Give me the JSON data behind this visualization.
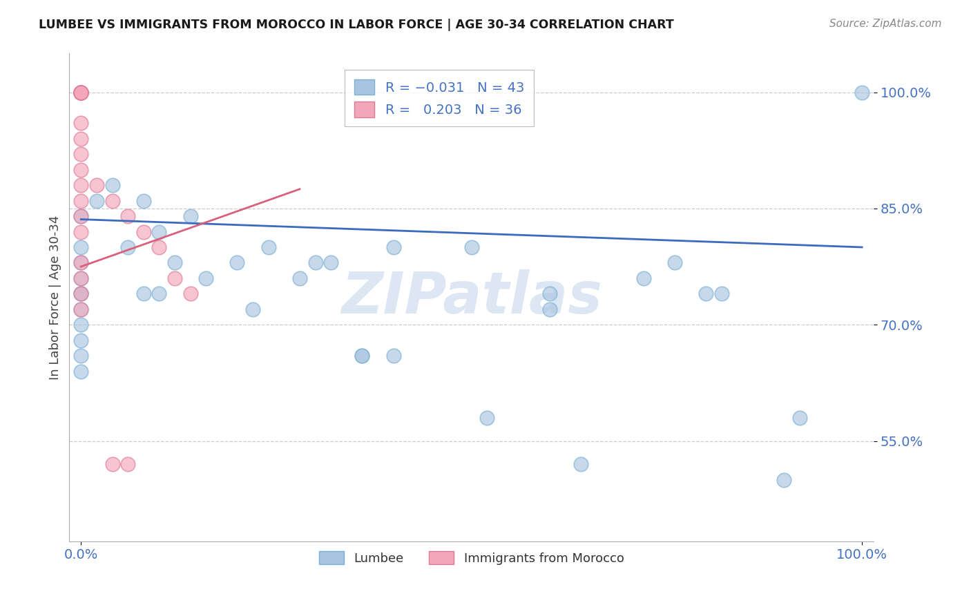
{
  "title": "LUMBEE VS IMMIGRANTS FROM MOROCCO IN LABOR FORCE | AGE 30-34 CORRELATION CHART",
  "source": "Source: ZipAtlas.com",
  "ylabel": "In Labor Force | Age 30-34",
  "xlim": [
    0.0,
    1.0
  ],
  "ylim": [
    0.42,
    1.05
  ],
  "yticks": [
    0.55,
    0.7,
    0.85,
    1.0
  ],
  "ytick_labels": [
    "55.0%",
    "70.0%",
    "85.0%",
    "100.0%"
  ],
  "xticks": [
    0.0,
    1.0
  ],
  "xtick_labels": [
    "0.0%",
    "100.0%"
  ],
  "lumbee_color": "#a8c4e0",
  "lumbee_edge": "#7aafd4",
  "morocco_color": "#f4a7b9",
  "morocco_edge": "#e07898",
  "lumbee_trend_x": [
    0.0,
    1.0
  ],
  "lumbee_trend_y": [
    0.836,
    0.8
  ],
  "morocco_trend_x": [
    0.0,
    0.28
  ],
  "morocco_trend_y": [
    0.775,
    0.875
  ],
  "trend_blue": "#3a6bbf",
  "trend_pink": "#d9607a",
  "watermark": "ZIPatlas",
  "watermark_color": "#c5d8ec",
  "background_color": "#ffffff",
  "grid_color": "#cccccc",
  "tick_color": "#4472C4",
  "title_color": "#1a1a1a",
  "source_color": "#888888",
  "lumbee_x": [
    0.0,
    0.0,
    0.0,
    0.0,
    0.0,
    0.02,
    0.04,
    0.06,
    0.08,
    0.1,
    0.12,
    0.14,
    0.16,
    0.2,
    0.22,
    0.24,
    0.28,
    0.3,
    0.32,
    0.36,
    0.4,
    0.5,
    0.52,
    0.6,
    0.64,
    0.72,
    0.76,
    0.8,
    0.82,
    0.9,
    0.92,
    1.0,
    0.0,
    0.0,
    0.0,
    0.0,
    0.0,
    0.0,
    0.08,
    0.1,
    0.36,
    0.4,
    0.6
  ],
  "lumbee_y": [
    0.84,
    0.8,
    0.78,
    0.76,
    0.74,
    0.86,
    0.88,
    0.8,
    0.86,
    0.82,
    0.78,
    0.84,
    0.76,
    0.78,
    0.72,
    0.8,
    0.76,
    0.78,
    0.78,
    0.66,
    0.8,
    0.8,
    0.58,
    0.74,
    0.52,
    0.76,
    0.78,
    0.74,
    0.74,
    0.5,
    0.58,
    1.0,
    0.7,
    0.68,
    0.66,
    0.64,
    0.72,
    0.74,
    0.74,
    0.74,
    0.66,
    0.66,
    0.72
  ],
  "morocco_x": [
    0.0,
    0.0,
    0.0,
    0.0,
    0.0,
    0.0,
    0.0,
    0.0,
    0.0,
    0.0,
    0.0,
    0.0,
    0.0,
    0.0,
    0.0,
    0.02,
    0.04,
    0.06,
    0.08,
    0.1,
    0.12,
    0.14,
    0.0,
    0.0,
    0.0,
    0.0,
    0.04,
    0.06
  ],
  "morocco_y": [
    1.0,
    1.0,
    1.0,
    1.0,
    1.0,
    1.0,
    1.0,
    0.96,
    0.94,
    0.92,
    0.9,
    0.88,
    0.86,
    0.84,
    0.82,
    0.88,
    0.86,
    0.84,
    0.82,
    0.8,
    0.76,
    0.74,
    0.78,
    0.76,
    0.74,
    0.72,
    0.52,
    0.52
  ]
}
